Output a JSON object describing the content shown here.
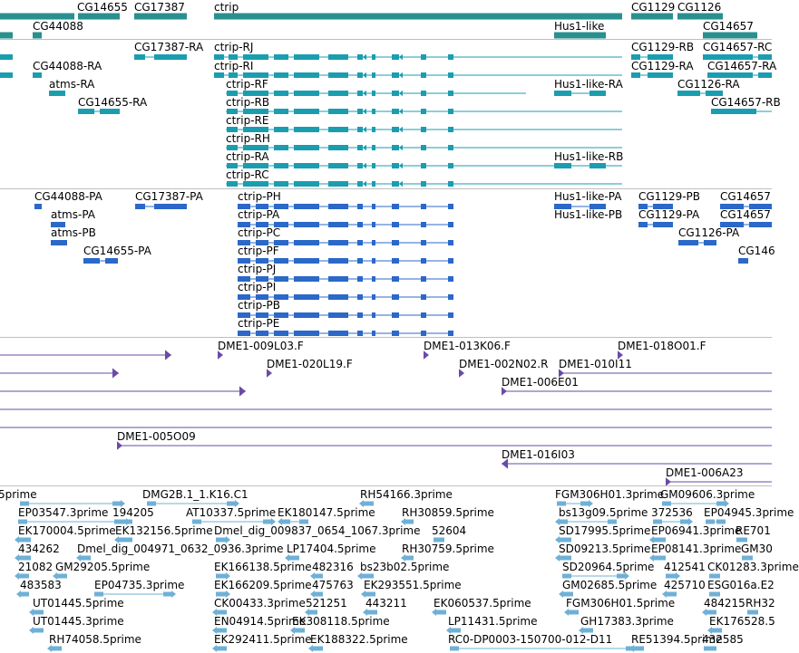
{
  "colors": {
    "gene": "#2a8f8f",
    "transcript": "#1b9db0",
    "protein": "#2b68c8",
    "clone": "#6a4aa8",
    "est": "#6fb0d6",
    "separator": "#bfbfbf",
    "text": "#000000"
  },
  "tracks": {
    "genes": [
      "CG14655",
      "CG17387",
      "ctrip",
      "CG1129",
      "CG1126",
      "CG44088",
      "Hus1-like",
      "CG14657"
    ],
    "transcripts": [
      "CG17387-RA",
      "ctrip-RJ",
      "CG1129-RB",
      "CG14657-RC",
      "CG44088-RA",
      "ctrip-RI",
      "CG1129-RA",
      "CG14657-RA",
      "atms-RA",
      "ctrip-RF",
      "Hus1-like-RA",
      "CG1126-RA",
      "CG14655-RA",
      "ctrip-RB",
      "CG14657-RB",
      "ctrip-RE",
      "ctrip-RH",
      "ctrip-RA",
      "Hus1-like-RB",
      "ctrip-RC"
    ],
    "proteins": [
      "CG44088-PA",
      "CG17387-PA",
      "ctrip-PH",
      "Hus1-like-PA",
      "CG1129-PB",
      "CG14657",
      "atms-PA",
      "ctrip-PA",
      "Hus1-like-PB",
      "CG1129-PA",
      "CG14657",
      "atms-PB",
      "ctrip-PC",
      "CG1126-PA",
      "CG14655-PA",
      "ctrip-PF",
      "CG146",
      "ctrip-PJ",
      "ctrip-PI",
      "ctrip-PB",
      "ctrip-PE"
    ],
    "clones": [
      "DME1-009L03.F",
      "DME1-013K06.F",
      "DME1-018O01.F",
      "DME1-020L19.F",
      "DME1-002N02.R",
      "DME1-010I11",
      "DME1-006E01",
      "DME1-005O09",
      "DME1-016I03",
      "DME1-006A23"
    ],
    "ests": [
      "5prime",
      "DMG2B.1_1.K16.C1",
      "RH54166.3prime",
      "FGM306H01.3prime",
      "GM09606.3prime",
      "EP03547.3prime",
      "194205",
      "AT10337.5prime",
      "EK180147.5prime",
      "RH30859.5prime",
      "bs13g09.5prime",
      "372536",
      "EP04945.3prime",
      "EK170004.5prime",
      "EK132156.5prime",
      "Dmel_dig_009837_0654_1067.3prime",
      "52604",
      "SD17995.5prime",
      "EP06941.3prime",
      "RE701",
      "434262",
      "Dmel_dig_004971_0632_0936.3prime",
      "LP17404.5prime",
      "RH30759.5prime",
      "SD09213.5prime",
      "EP08141.3prime",
      "GM30",
      "21082",
      "GM29205.5prime",
      "EK166138.5prime",
      "482316",
      "bs23b02.5prime",
      "SD20964.5prime",
      "412541",
      "CK01283.3prime",
      "483583",
      "EP04735.3prime",
      "EK166209.5prime",
      "475763",
      "EK293551.5prime",
      "GM02685.5prime",
      "425710",
      "ESG016a.E2",
      "UT01445.5prime",
      "CK00433.3prime",
      "521251",
      "443211",
      "EK060537.5prime",
      "FGM306H01.5prime",
      "484215",
      "RH32",
      "UT01445.3prime",
      "EN04914.5prime",
      "EK308118.5prime",
      "LP11431.5prime",
      "GH17383.3prime",
      "EK176528.5",
      "RH74058.5prime",
      "EK292411.5prime",
      "EK188322.5prime",
      "RC0-DP0003-150700-012-D11",
      "RE51394.5prime",
      "432585"
    ]
  }
}
